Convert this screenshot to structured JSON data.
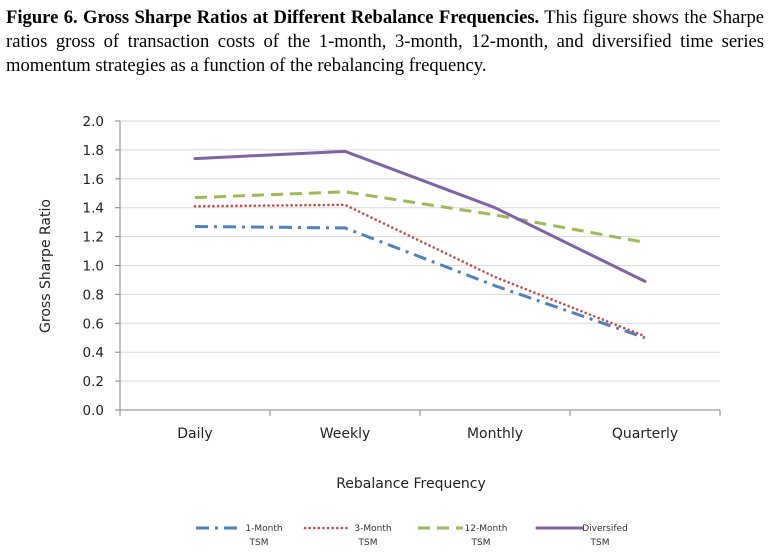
{
  "caption": {
    "bold": "Figure 6. Gross Sharpe Ratios at Different Rebalance Frequencies.",
    "text": " This figure shows the Sharpe ratios gross of transaction costs of the 1-month, 3-month, 12-month, and diversified time series momentum strategies as a function of the rebalancing frequency."
  },
  "chart_data": {
    "type": "line",
    "categories": [
      "Daily",
      "Weekly",
      "Monthly",
      "Quarterly"
    ],
    "xlabel": "Rebalance Frequency",
    "ylabel": "Gross Sharpe Ratio",
    "ylim": [
      0,
      2.0
    ],
    "yticks": [
      "0.0",
      "0.2",
      "0.4",
      "0.6",
      "0.8",
      "1.0",
      "1.2",
      "1.4",
      "1.6",
      "1.8",
      "2.0"
    ],
    "grid": true,
    "legend": "bottom",
    "series": [
      {
        "name_line1": "1-Month",
        "name_line2": "TSM",
        "values": [
          1.27,
          1.26,
          0.86,
          0.5
        ],
        "color": "#4f81bd",
        "dash": "dashdot"
      },
      {
        "name_line1": "3-Month",
        "name_line2": "TSM",
        "values": [
          1.41,
          1.42,
          0.92,
          0.51
        ],
        "color": "#c0504d",
        "dash": "dotted"
      },
      {
        "name_line1": "12-Month",
        "name_line2": "TSM",
        "values": [
          1.47,
          1.51,
          1.35,
          1.16
        ],
        "color": "#9bbb59",
        "dash": "dashed"
      },
      {
        "name_line1": "Diversifed",
        "name_line2": "TSM",
        "values": [
          1.74,
          1.79,
          1.4,
          0.89
        ],
        "color": "#8064a2",
        "dash": "solid"
      }
    ]
  }
}
